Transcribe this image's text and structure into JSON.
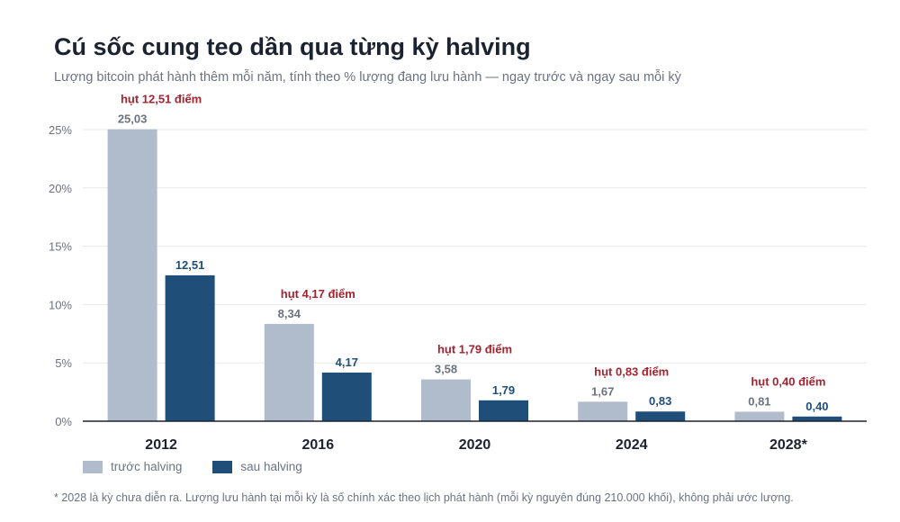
{
  "title": "Cú sốc cung teo dần qua từng kỳ halving",
  "subtitle": "Lượng bitcoin phát hành thêm mỗi năm, tính theo % lượng đang lưu hành — ngay trước và ngay sau mỗi kỳ",
  "footnote": "* 2028 là kỳ chưa diễn ra. Lượng lưu hành tại mỗi kỳ là số chính xác theo lịch phát hành (mỗi kỳ nguyên đúng 210.000 khối), không phải ước lượng.",
  "colors": {
    "before": "#b0bccc",
    "after": "#1f4e79",
    "annotation": "#a3232f",
    "axis_text": "#6b7280",
    "category_text": "#1b2230"
  },
  "chart_data": {
    "type": "bar",
    "categories": [
      "2012",
      "2016",
      "2020",
      "2024",
      "2028*"
    ],
    "series": [
      {
        "name": "trước halving",
        "values": [
          25.03,
          8.34,
          3.58,
          1.67,
          0.81
        ],
        "labels": [
          "25,03",
          "8,34",
          "3,58",
          "1,67",
          "0,81"
        ]
      },
      {
        "name": "sau halving",
        "values": [
          12.51,
          4.17,
          1.79,
          0.83,
          0.4
        ],
        "labels": [
          "12,51",
          "4,17",
          "1,79",
          "0,83",
          "0,40"
        ]
      }
    ],
    "annotations": [
      "hụt 12,51 điểm",
      "hụt 4,17 điểm",
      "hụt 1,79 điểm",
      "hụt 0,83 điểm",
      "hụt 0,40 điểm"
    ],
    "yticks": [
      0,
      5,
      10,
      15,
      20,
      25
    ],
    "ytick_labels": [
      "0%",
      "5%",
      "10%",
      "15%",
      "20%",
      "25%"
    ],
    "ylim": [
      0,
      25
    ],
    "grid": true,
    "legend_position": "bottom-left"
  }
}
